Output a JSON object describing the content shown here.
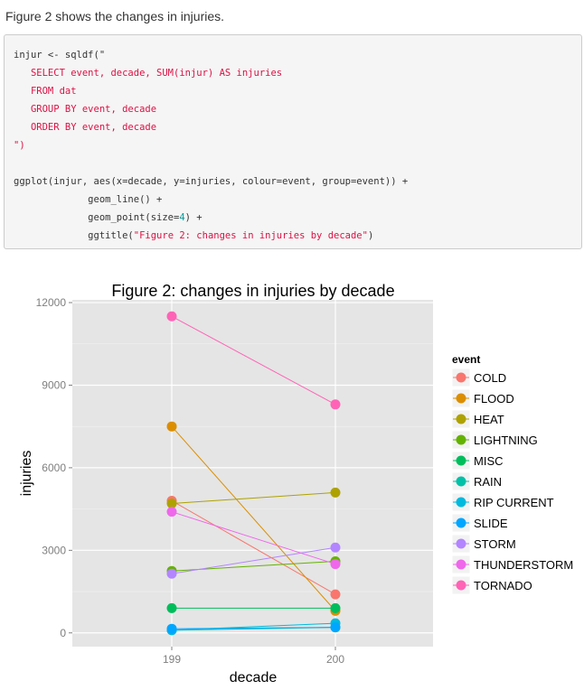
{
  "intro_text": "Figure 2 shows the changes in injuries.",
  "code_lines": [
    [
      {
        "t": "plain",
        "v": "injur <- sqldf(\""
      }
    ],
    [
      {
        "t": "str",
        "v": "   SELECT event, decade, SUM(injur) AS injuries"
      }
    ],
    [
      {
        "t": "str",
        "v": "   FROM dat"
      }
    ],
    [
      {
        "t": "str",
        "v": "   GROUP BY event, decade"
      }
    ],
    [
      {
        "t": "str",
        "v": "   ORDER BY event, decade"
      }
    ],
    [
      {
        "t": "str",
        "v": "\")"
      }
    ],
    [
      {
        "t": "plain",
        "v": ""
      }
    ],
    [
      {
        "t": "plain",
        "v": "ggplot(injur, aes(x=decade, y=injuries, colour=event, group=event)) +"
      }
    ],
    [
      {
        "t": "plain",
        "v": "             geom_line() +"
      }
    ],
    [
      {
        "t": "plain",
        "v": "             geom_point(size="
      },
      {
        "t": "num",
        "v": "4"
      },
      {
        "t": "plain",
        "v": ") +"
      }
    ],
    [
      {
        "t": "plain",
        "v": "             ggtitle("
      },
      {
        "t": "str",
        "v": "\"Figure 2: changes in injuries by decade\""
      },
      {
        "t": "plain",
        "v": ")"
      }
    ]
  ],
  "chart_data": {
    "type": "line",
    "title": "Figure 2: changes in injuries by decade",
    "xlabel": "decade",
    "ylabel": "injuries",
    "x": [
      "199",
      "200"
    ],
    "ylim": [
      -500,
      12100
    ],
    "yticks": [
      0,
      3000,
      6000,
      9000,
      12000
    ],
    "grid": true,
    "legend_title": "event",
    "legend_position": "right",
    "series": [
      {
        "name": "COLD",
        "color": "#F8766D",
        "values": [
          4800,
          1400
        ]
      },
      {
        "name": "FLOOD",
        "color": "#DB8E00",
        "values": [
          7500,
          800
        ]
      },
      {
        "name": "HEAT",
        "color": "#AEA200",
        "values": [
          4700,
          5100
        ]
      },
      {
        "name": "LIGHTNING",
        "color": "#64B200",
        "values": [
          2250,
          2600
        ]
      },
      {
        "name": "MISC",
        "color": "#00BD5C",
        "values": [
          900,
          900
        ]
      },
      {
        "name": "RAIN",
        "color": "#00C1A7",
        "values": [
          100,
          200
        ]
      },
      {
        "name": "RIP CURRENT",
        "color": "#00BADE",
        "values": [
          100,
          350
        ]
      },
      {
        "name": "SLIDE",
        "color": "#00A6FF",
        "values": [
          150,
          200
        ]
      },
      {
        "name": "STORM",
        "color": "#B385FF",
        "values": [
          2150,
          3100
        ]
      },
      {
        "name": "THUNDERSTORM",
        "color": "#EF67EB",
        "values": [
          4400,
          2500
        ]
      },
      {
        "name": "TORNADO",
        "color": "#FF63B6",
        "values": [
          11500,
          8300
        ]
      }
    ]
  }
}
